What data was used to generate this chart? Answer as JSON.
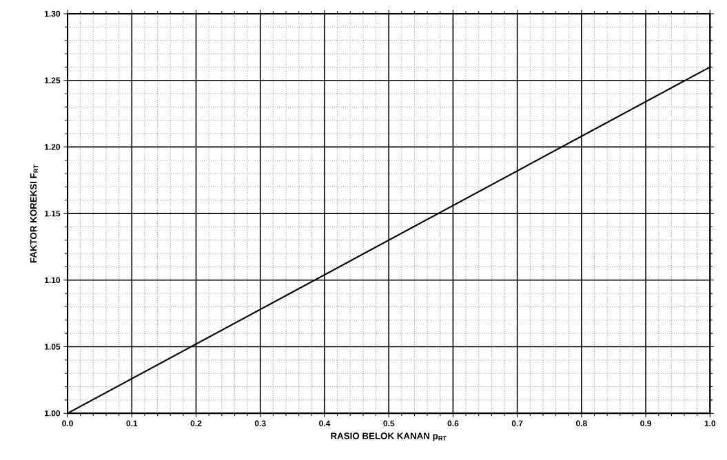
{
  "chart_data": {
    "type": "line",
    "xlabel": "RASIO BELOK KANAN p$_{RT}$",
    "ylabel": "FAKTOR KOREKSI F$_{RT}$",
    "x": [
      0.0,
      1.0
    ],
    "series": [
      {
        "color": "#000000",
        "values": [
          1.0,
          1.26
        ]
      }
    ],
    "xlim": [
      0.0,
      1.0
    ],
    "ylim": [
      1.0,
      1.3
    ],
    "xticks": [
      {
        "value": 0.0,
        "label": "0.0"
      },
      0.1,
      0.2,
      0.3,
      0.4,
      0.5,
      0.6,
      0.7,
      0.8,
      0.9,
      {
        "value": 1.0,
        "label": "1.0"
      }
    ],
    "yticks": [
      {
        "value": 1.0,
        "label": "1.00"
      },
      1.05,
      {
        "value": 1.1,
        "label": "1.10"
      },
      1.15,
      {
        "value": 1.2,
        "label": "1.20"
      },
      1.25,
      {
        "value": 1.3,
        "label": "1.30"
      }
    ],
    "grid": true,
    "marker": "none",
    "line_style": "solid"
  }
}
